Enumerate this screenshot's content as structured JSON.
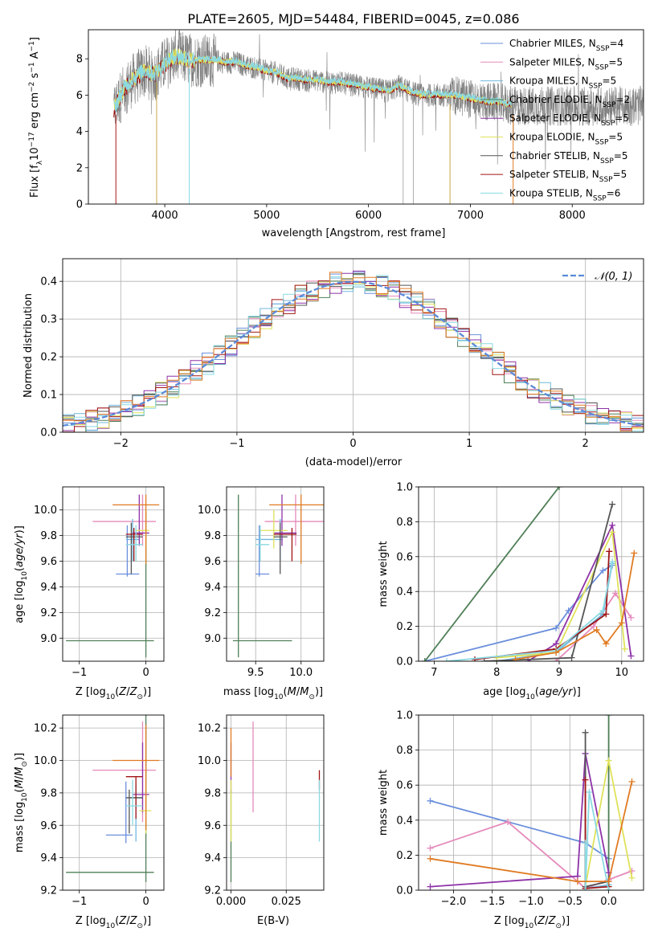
{
  "figure_title": "PLATE=2605, MJD=54484, FIBERID=0045, z=0.086",
  "colors": {
    "Chabrier MILES": "#6a8fdc",
    "Salpeter MILES": "#e58abb",
    "Kroupa MILES": "#6fb7de",
    "Chabrier ELODIE": "#4f7f57",
    "Salpeter ELODIE": "#8e32a8",
    "Kroupa ELODIE": "#dfe25a",
    "Chabrier STELIB": "#555555",
    "Salpeter STELIB": "#a11515",
    "Kroupa STELIB": "#8ad9e2",
    "orange": "#e07b22",
    "data": "#7f7f7f",
    "gaussian": "#5b8ad8"
  },
  "chart_data": [
    {
      "id": "spectrum",
      "type": "line",
      "title": "PLATE=2605, MJD=54484, FIBERID=0045, z=0.086",
      "xlabel": "wavelength [Angstrom, rest frame]",
      "ylabel": "Flux [f_λ 10^-17 erg cm^-2 s^-1 A^-1]",
      "xlim": [
        3250,
        8700
      ],
      "ylim": [
        0,
        9.6
      ],
      "xticks": [
        "4000",
        "5000",
        "6000",
        "7000",
        "8000"
      ],
      "yticks": [
        "0",
        "2",
        "4",
        "6",
        "8"
      ],
      "legend_position": "right",
      "legend": [
        {
          "name": "Chabrier MILES",
          "nssp": "4"
        },
        {
          "name": "Salpeter MILES",
          "nssp": "5"
        },
        {
          "name": "Kroupa MILES",
          "nssp": "5"
        },
        {
          "name": "Chabrier ELODIE",
          "nssp": "2"
        },
        {
          "name": "Salpeter ELODIE",
          "nssp": "5"
        },
        {
          "name": "Kroupa ELODIE",
          "nssp": "5"
        },
        {
          "name": "Chabrier STELIB",
          "nssp": "5"
        },
        {
          "name": "Salpeter STELIB",
          "nssp": "5"
        },
        {
          "name": "Kroupa STELIB",
          "nssp": "6"
        }
      ],
      "continuum": [
        [
          3500,
          5.2
        ],
        [
          3600,
          6.3
        ],
        [
          3700,
          6.9
        ],
        [
          3800,
          7.3
        ],
        [
          3900,
          7.1
        ],
        [
          4000,
          7.7
        ],
        [
          4100,
          8.1
        ],
        [
          4200,
          8.0
        ],
        [
          4300,
          7.9
        ],
        [
          4400,
          7.9
        ],
        [
          4500,
          7.9
        ],
        [
          4600,
          7.8
        ],
        [
          4700,
          7.8
        ],
        [
          4800,
          7.6
        ],
        [
          4900,
          7.5
        ],
        [
          5000,
          7.3
        ],
        [
          5100,
          7.2
        ],
        [
          5200,
          6.9
        ],
        [
          5300,
          6.9
        ],
        [
          5400,
          6.8
        ],
        [
          5500,
          6.8
        ],
        [
          5600,
          6.7
        ],
        [
          5700,
          6.7
        ],
        [
          5800,
          6.6
        ],
        [
          5900,
          6.5
        ],
        [
          6000,
          6.4
        ],
        [
          6100,
          6.3
        ],
        [
          6200,
          6.2
        ],
        [
          6300,
          6.5
        ],
        [
          6400,
          6.2
        ],
        [
          6500,
          6.0
        ],
        [
          6600,
          6.0
        ],
        [
          6700,
          6.0
        ],
        [
          6800,
          6.0
        ],
        [
          6900,
          5.9
        ],
        [
          7000,
          5.8
        ],
        [
          7100,
          5.7
        ],
        [
          7200,
          5.6
        ],
        [
          7300,
          5.6
        ],
        [
          7400,
          5.4
        ]
      ]
    },
    {
      "id": "residuals",
      "type": "histogram",
      "xlabel": "(data-model)/error",
      "ylabel": "Normed distribution",
      "xlim": [
        -2.5,
        2.5
      ],
      "ylim": [
        0,
        0.46
      ],
      "xticks": [
        "−2",
        "−1",
        "0",
        "1",
        "2"
      ],
      "yticks": [
        "0.0",
        "0.1",
        "0.2",
        "0.3",
        "0.4"
      ],
      "legend": "𝒩(0, 1)",
      "legend_position": "top-right",
      "bin_width": 0.1
    },
    {
      "id": "age_vs_Z",
      "type": "errorbar",
      "xlabel": "Z [log10(Z/Z⊙)]",
      "ylabel": "age [log10(age/yr)]",
      "xlim": [
        -1.25,
        0.27
      ],
      "ylim": [
        8.82,
        10.18
      ],
      "xticks": [
        "−1",
        "0"
      ],
      "yticks": [
        "9.0",
        "9.2",
        "9.4",
        "9.6",
        "9.8",
        "10.0"
      ],
      "points": [
        {
          "c": "Chabrier MILES",
          "x": -0.28,
          "xe": [
            -0.45,
            -0.1
          ],
          "y": 9.5,
          "ye": [
            9.48,
            9.88
          ]
        },
        {
          "c": "Salpeter MILES",
          "x": -0.05,
          "xe": [
            -0.8,
            0.15
          ],
          "y": 9.91,
          "ye": [
            9.72,
            10.12
          ]
        },
        {
          "c": "Kroupa MILES",
          "x": -0.2,
          "xe": [
            -0.3,
            -0.1
          ],
          "y": 9.77,
          "ye": [
            9.6,
            9.93
          ]
        },
        {
          "c": "Chabrier ELODIE",
          "x": 0.0,
          "xe": [
            -1.2,
            0.12
          ],
          "y": 8.98,
          "ye": [
            8.85,
            9.98
          ]
        },
        {
          "c": "Salpeter ELODIE",
          "x": -0.1,
          "xe": [
            -0.2,
            0.05
          ],
          "y": 9.82,
          "ye": [
            9.72,
            10.12
          ]
        },
        {
          "c": "Kroupa ELODIE",
          "x": 0.0,
          "xe": [
            -0.15,
            0.05
          ],
          "y": 9.84,
          "ye": [
            9.7,
            10.0
          ]
        },
        {
          "c": "Chabrier STELIB",
          "x": -0.22,
          "xe": [
            -0.3,
            -0.05
          ],
          "y": 9.79,
          "ye": [
            9.5,
            9.9
          ]
        },
        {
          "c": "Salpeter STELIB",
          "x": -0.18,
          "xe": [
            -0.3,
            -0.05
          ],
          "y": 9.81,
          "ye": [
            9.6,
            9.86
          ]
        },
        {
          "c": "Kroupa STELIB",
          "x": -0.15,
          "xe": [
            -0.3,
            -0.05
          ],
          "y": 9.73,
          "ye": [
            9.6,
            9.88
          ]
        },
        {
          "c": "orange",
          "x": 0.0,
          "xe": [
            -0.5,
            0.2
          ],
          "y": 10.04,
          "ye": [
            9.58,
            10.12
          ]
        }
      ]
    },
    {
      "id": "age_vs_mass",
      "type": "errorbar",
      "xlabel": "mass [log10(M/M⊙)]",
      "ylabel": "",
      "xlim": [
        9.18,
        10.25
      ],
      "ylim": [
        8.82,
        10.18
      ],
      "xticks": [
        "9.5",
        "10.0"
      ],
      "yticks": [
        "9.0",
        "9.2",
        "9.4",
        "9.6",
        "9.8",
        "10.0"
      ],
      "points": [
        {
          "c": "Chabrier MILES",
          "x": 9.54,
          "xe": [
            9.5,
            9.65
          ],
          "y": 9.5,
          "ye": [
            9.48,
            9.88
          ]
        },
        {
          "c": "Salpeter MILES",
          "x": 9.94,
          "xe": [
            9.6,
            10.25
          ],
          "y": 9.91,
          "ye": [
            9.72,
            10.12
          ]
        },
        {
          "c": "Kroupa MILES",
          "x": 9.77,
          "xe": [
            9.5,
            9.8
          ],
          "y": 9.77,
          "ye": [
            9.6,
            9.93
          ]
        },
        {
          "c": "Chabrier ELODIE",
          "x": 9.31,
          "xe": [
            9.25,
            9.9
          ],
          "y": 8.98,
          "ye": [
            8.85,
            10.12
          ]
        },
        {
          "c": "Salpeter ELODIE",
          "x": 9.79,
          "xe": [
            9.7,
            9.95
          ],
          "y": 9.82,
          "ye": [
            9.72,
            10.12
          ]
        },
        {
          "c": "Kroupa ELODIE",
          "x": 9.7,
          "xe": [
            9.55,
            9.85
          ],
          "y": 9.84,
          "ye": [
            9.7,
            10.0
          ]
        },
        {
          "c": "Chabrier STELIB",
          "x": 9.77,
          "xe": [
            9.7,
            9.85
          ],
          "y": 9.79,
          "ye": [
            9.5,
            9.9
          ]
        },
        {
          "c": "Salpeter STELIB",
          "x": 9.9,
          "xe": [
            9.7,
            9.95
          ],
          "y": 9.81,
          "ye": [
            9.6,
            9.86
          ]
        },
        {
          "c": "Kroupa STELIB",
          "x": 9.55,
          "xe": [
            9.5,
            9.65
          ],
          "y": 9.73,
          "ye": [
            9.6,
            9.88
          ]
        },
        {
          "c": "orange",
          "x": 10.0,
          "xe": [
            9.65,
            10.25
          ],
          "y": 10.04,
          "ye": [
            9.58,
            10.12
          ]
        }
      ]
    },
    {
      "id": "weight_vs_age",
      "type": "line",
      "xlabel": "age [log10(age/yr)]",
      "ylabel": "mass weight",
      "xlim": [
        6.75,
        10.35
      ],
      "ylim": [
        0,
        1.0
      ],
      "xticks": [
        "7",
        "8",
        "9",
        "10"
      ],
      "yticks": [
        "0.0",
        "0.2",
        "0.4",
        "0.6",
        "0.8",
        "1.0"
      ],
      "series": [
        {
          "c": "Chabrier MILES",
          "x": [
            6.85,
            8.95,
            9.15,
            9.7,
            9.85
          ],
          "y": [
            0.0,
            0.19,
            0.29,
            0.52,
            0.55
          ]
        },
        {
          "c": "Salpeter MILES",
          "x": [
            8.95,
            9.55,
            9.9,
            10.15
          ],
          "y": [
            0.0,
            0.2,
            0.39,
            0.25
          ]
        },
        {
          "c": "Kroupa MILES",
          "x": [
            8.0,
            8.95,
            9.7,
            9.85
          ],
          "y": [
            0.0,
            0.05,
            0.27,
            0.56
          ]
        },
        {
          "c": "Chabrier ELODIE",
          "x": [
            6.85,
            9.0
          ],
          "y": [
            0.0,
            1.0
          ]
        },
        {
          "c": "Salpeter ELODIE",
          "x": [
            8.5,
            8.95,
            9.85,
            10.15
          ],
          "y": [
            0.0,
            0.1,
            0.78,
            0.03
          ]
        },
        {
          "c": "Kroupa ELODIE",
          "x": [
            8.0,
            8.95,
            9.85,
            10.05
          ],
          "y": [
            0.02,
            0.05,
            0.74,
            0.07
          ]
        },
        {
          "c": "Chabrier STELIB",
          "x": [
            7.8,
            9.2,
            9.85
          ],
          "y": [
            0.0,
            0.02,
            0.9
          ]
        },
        {
          "c": "Salpeter STELIB",
          "x": [
            7.65,
            8.95,
            9.75,
            9.8
          ],
          "y": [
            0.01,
            0.07,
            0.27,
            0.63
          ]
        },
        {
          "c": "Kroupa STELIB",
          "x": [
            7.2,
            8.95,
            9.7,
            9.85
          ],
          "y": [
            0.0,
            0.06,
            0.29,
            0.57
          ]
        },
        {
          "c": "orange",
          "x": [
            8.3,
            8.95,
            9.6,
            9.75,
            10.0,
            10.2
          ],
          "y": [
            0.01,
            0.05,
            0.18,
            0.1,
            0.22,
            0.62
          ]
        }
      ]
    },
    {
      "id": "mass_vs_Z",
      "type": "errorbar",
      "xlabel": "Z [log10(Z/Z⊙)]",
      "ylabel": "mass [log10(M/M⊙)]",
      "xlim": [
        -1.25,
        0.27
      ],
      "ylim": [
        9.2,
        10.28
      ],
      "xticks": [
        "−1",
        "0"
      ],
      "yticks": [
        "9.2",
        "9.4",
        "9.6",
        "9.8",
        "10.0",
        "10.2"
      ],
      "points": [
        {
          "c": "Chabrier MILES",
          "x": -0.3,
          "xe": [
            -0.6,
            -0.2
          ],
          "y": 9.54,
          "ye": [
            9.49,
            9.87
          ]
        },
        {
          "c": "Salpeter MILES",
          "x": -0.05,
          "xe": [
            -0.8,
            0.15
          ],
          "y": 9.94,
          "ye": [
            9.62,
            10.24
          ]
        },
        {
          "c": "Kroupa MILES",
          "x": -0.15,
          "xe": [
            -0.25,
            -0.05
          ],
          "y": 9.77,
          "ye": [
            9.5,
            9.85
          ]
        },
        {
          "c": "Chabrier ELODIE",
          "x": 0.0,
          "xe": [
            -1.2,
            0.12
          ],
          "y": 9.31,
          "ye": [
            9.25,
            10.28
          ]
        },
        {
          "c": "Salpeter ELODIE",
          "x": -0.05,
          "xe": [
            -0.2,
            0.05
          ],
          "y": 9.79,
          "ye": [
            9.68,
            10.11
          ]
        },
        {
          "c": "Kroupa ELODIE",
          "x": 0.0,
          "xe": [
            -0.1,
            0.08
          ],
          "y": 9.69,
          "ye": [
            9.55,
            9.84
          ]
        },
        {
          "c": "Chabrier STELIB",
          "x": -0.25,
          "xe": [
            -0.3,
            -0.05
          ],
          "y": 9.77,
          "ye": [
            9.55,
            9.82
          ]
        },
        {
          "c": "Salpeter STELIB",
          "x": -0.15,
          "xe": [
            -0.3,
            -0.05
          ],
          "y": 9.9,
          "ye": [
            9.64,
            9.9
          ]
        },
        {
          "c": "Kroupa STELIB",
          "x": -0.2,
          "xe": [
            -0.3,
            -0.05
          ],
          "y": 9.72,
          "ye": [
            9.6,
            9.88
          ]
        },
        {
          "c": "orange",
          "x": 0.0,
          "xe": [
            -0.5,
            0.2
          ],
          "y": 10.0,
          "ye": [
            9.57,
            10.22
          ]
        }
      ]
    },
    {
      "id": "mass_vs_ebv",
      "type": "errorbar",
      "xlabel": "E(B-V)",
      "ylabel": "",
      "xlim": [
        -0.002,
        0.042
      ],
      "ylim": [
        9.2,
        10.28
      ],
      "xticks": [
        "0.000",
        "0.025"
      ],
      "yticks": [
        "9.2",
        "9.4",
        "9.6",
        "9.8",
        "10.0",
        "10.2"
      ],
      "points": [
        {
          "c": "Chabrier ELODIE",
          "x": 0.0,
          "y": 9.31,
          "ye": [
            9.25,
            9.82
          ]
        },
        {
          "c": "Salpeter ELODIE",
          "x": 0.0,
          "y": 9.95,
          "ye": [
            9.8,
            10.11
          ]
        },
        {
          "c": "Kroupa ELODIE",
          "x": 0.0,
          "y": 9.7,
          "ye": [
            9.5,
            9.88
          ]
        },
        {
          "c": "orange",
          "x": 0.0,
          "y": 10.0,
          "ye": [
            9.9,
            10.2
          ]
        },
        {
          "c": "Salpeter MILES",
          "x": 0.01,
          "y": 9.96,
          "ye": [
            9.68,
            10.24
          ]
        },
        {
          "c": "Salpeter STELIB",
          "x": 0.04,
          "y": 9.88,
          "ye": [
            9.82,
            9.94
          ]
        },
        {
          "c": "Kroupa STELIB",
          "x": 0.04,
          "y": 9.7,
          "ye": [
            9.5,
            9.88
          ]
        }
      ]
    },
    {
      "id": "weight_vs_Z",
      "type": "line",
      "xlabel": "Z [log10(Z/Z⊙)]",
      "ylabel": "mass weight",
      "xlim": [
        -2.45,
        0.45
      ],
      "ylim": [
        0,
        1.0
      ],
      "xticks": [
        "−2.0",
        "−1.5",
        "−1.0",
        "−0.5",
        "0.0"
      ],
      "yticks": [
        "0.0",
        "0.2",
        "0.4",
        "0.6",
        "0.8",
        "1.0"
      ],
      "series": [
        {
          "c": "Chabrier MILES",
          "x": [
            -2.3,
            -0.3,
            0.0
          ],
          "y": [
            0.51,
            0.27,
            0.18
          ]
        },
        {
          "c": "Salpeter MILES",
          "x": [
            -2.3,
            -1.3,
            -0.4,
            -0.3,
            0.0,
            0.3
          ],
          "y": [
            0.24,
            0.39,
            0.05,
            0.01,
            0.06,
            0.11
          ]
        },
        {
          "c": "Kroupa MILES",
          "x": [
            -0.3,
            0.0
          ],
          "y": [
            0.01,
            0.03
          ]
        },
        {
          "c": "Chabrier ELODIE",
          "x": [
            0.0,
            0.0
          ],
          "y": [
            0.0,
            1.0
          ]
        },
        {
          "c": "Salpeter ELODIE",
          "x": [
            -2.3,
            -0.4,
            -0.3,
            0.0
          ],
          "y": [
            0.02,
            0.08,
            0.78,
            0.1
          ]
        },
        {
          "c": "Kroupa ELODIE",
          "x": [
            -0.3,
            0.0,
            0.3
          ],
          "y": [
            0.02,
            0.74,
            0.07
          ]
        },
        {
          "c": "Chabrier STELIB",
          "x": [
            -0.3,
            -0.3,
            0.0
          ],
          "y": [
            0.9,
            0.02,
            0.05
          ]
        },
        {
          "c": "Salpeter STELIB",
          "x": [
            -0.3,
            -0.3,
            0.0
          ],
          "y": [
            0.63,
            0.01,
            0.02
          ]
        },
        {
          "c": "Kroupa STELIB",
          "x": [
            -0.3,
            -0.3,
            -0.25,
            0.0
          ],
          "y": [
            0.27,
            0.0,
            0.56,
            0.0
          ]
        },
        {
          "c": "orange",
          "x": [
            -2.3,
            -0.4,
            0.0,
            0.3
          ],
          "y": [
            0.18,
            0.05,
            0.05,
            0.62
          ]
        }
      ]
    }
  ]
}
